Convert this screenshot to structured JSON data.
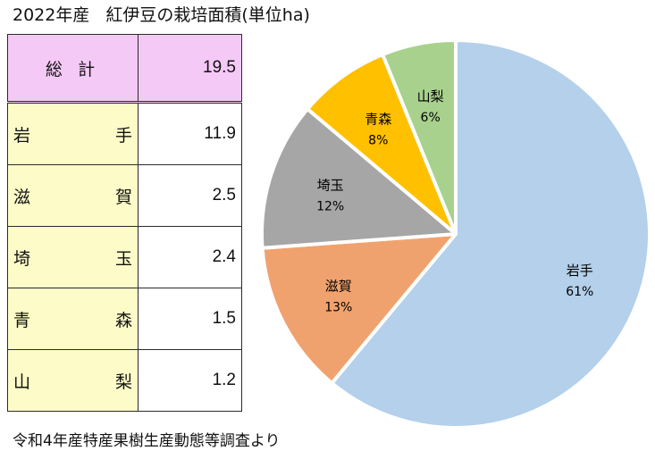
{
  "title_year": "2022年産",
  "title_main": "紅伊豆の栽培面積(単位ha)",
  "table": {
    "total": {
      "name": "総 計",
      "value": "19.5"
    },
    "rows": [
      {
        "left": "岩",
        "right": "手",
        "value": "11.9"
      },
      {
        "left": "滋",
        "right": "賀",
        "value": "2.5"
      },
      {
        "left": "埼",
        "right": "玉",
        "value": "2.4"
      },
      {
        "left": "青",
        "right": "森",
        "value": "1.5"
      },
      {
        "left": "山",
        "right": "梨",
        "value": "1.2"
      }
    ]
  },
  "source": "令和4年産特産果樹生産動態等調査より",
  "chart_data": {
    "type": "pie",
    "unit": "ha",
    "slices": [
      {
        "label": "岩手",
        "value": 11.9,
        "percent_label": "61%",
        "color": "#b4d0ea"
      },
      {
        "label": "滋賀",
        "value": 2.5,
        "percent_label": "13%",
        "color": "#f0a26e"
      },
      {
        "label": "埼玉",
        "value": 2.4,
        "percent_label": "12%",
        "color": "#a6a6a6"
      },
      {
        "label": "青森",
        "value": 1.5,
        "percent_label": "8%",
        "color": "#ffc000"
      },
      {
        "label": "山梨",
        "value": 1.2,
        "percent_label": "6%",
        "color": "#a8d18d"
      }
    ],
    "start_angle_deg": 0,
    "direction": "clockwise",
    "slice_border_color": "#ffffff"
  }
}
